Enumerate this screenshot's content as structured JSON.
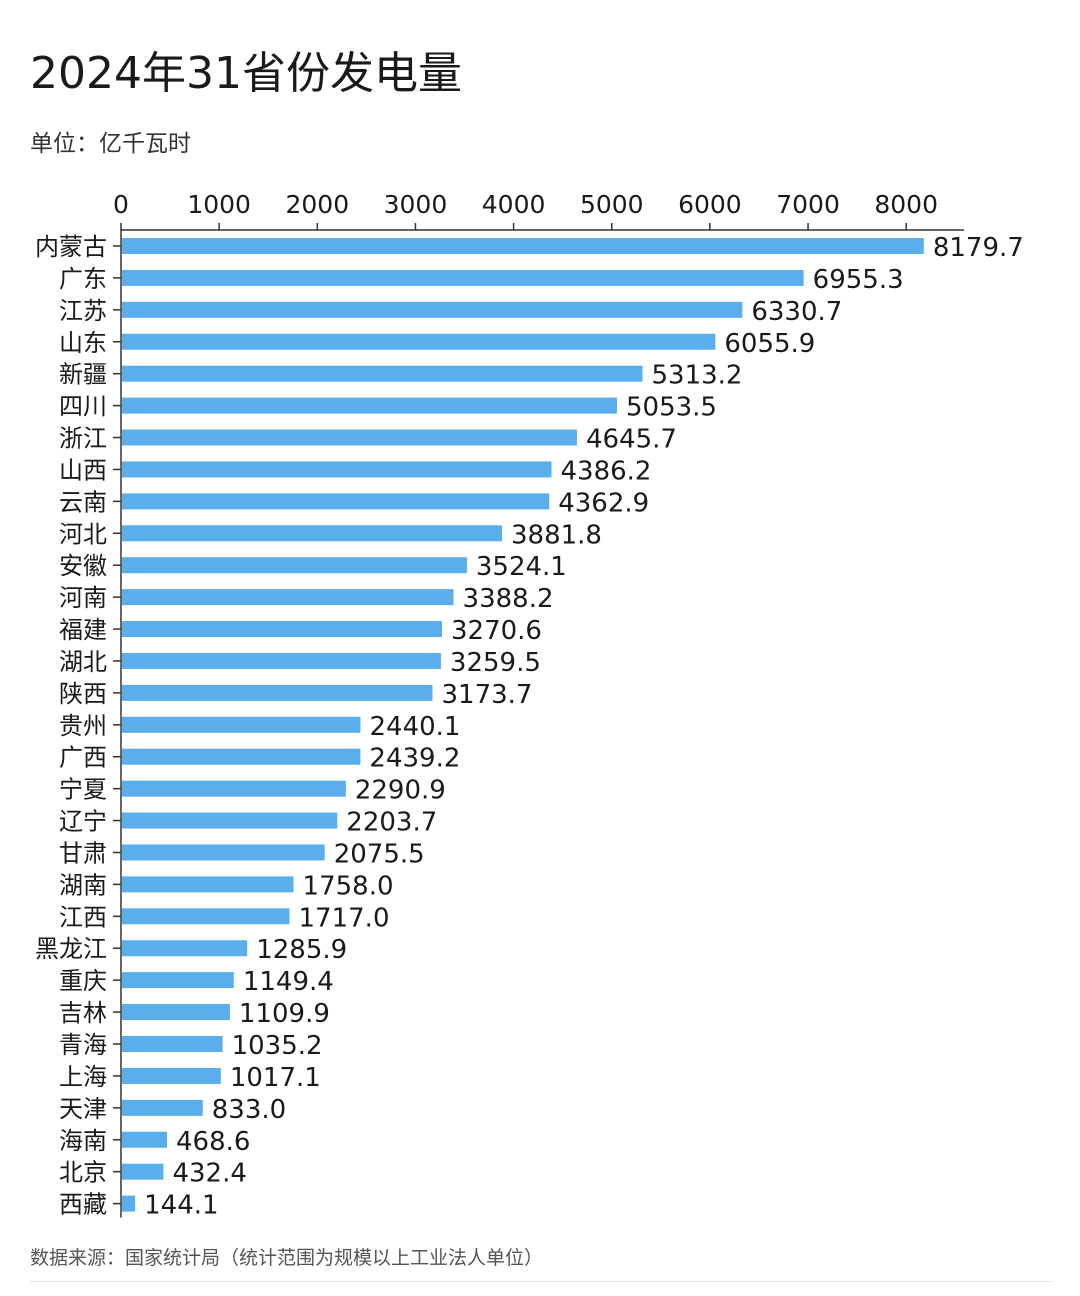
{
  "title": "2024年31省份发电量",
  "unit_label": "单位：亿千瓦时",
  "source": "数据来源：国家统计局（统计范围为规模以上工业法人单位）",
  "colors": {
    "bar": "#5aaeec",
    "axis": "#333333",
    "text": "#1a1a1a"
  },
  "chart_data": {
    "type": "bar",
    "orientation": "horizontal",
    "title": "2024年31省份发电量",
    "xlabel": "",
    "ylabel": "",
    "xlim": [
      0,
      8600
    ],
    "x_ticks": [
      "0",
      "1000",
      "2000",
      "3000",
      "4000",
      "5000",
      "6000",
      "7000",
      "8000"
    ],
    "x_axis_position": "top",
    "grid": false,
    "legend": "none",
    "categories": [
      "内蒙古",
      "广东",
      "江苏",
      "山东",
      "新疆",
      "四川",
      "浙江",
      "山西",
      "云南",
      "河北",
      "安徽",
      "河南",
      "福建",
      "湖北",
      "陕西",
      "贵州",
      "广西",
      "宁夏",
      "辽宁",
      "甘肃",
      "湖南",
      "江西",
      "黑龙江",
      "重庆",
      "吉林",
      "青海",
      "上海",
      "天津",
      "海南",
      "北京",
      "西藏"
    ],
    "values": [
      8179.7,
      6955.3,
      6330.7,
      6055.9,
      5313.2,
      5053.5,
      4645.7,
      4386.2,
      4362.9,
      3881.8,
      3524.1,
      3388.2,
      3270.6,
      3259.5,
      3173.7,
      2440.1,
      2439.2,
      2290.9,
      2203.7,
      2075.5,
      1758.0,
      1717.0,
      1285.9,
      1149.4,
      1109.9,
      1035.2,
      1017.1,
      833.0,
      468.6,
      432.4,
      144.1
    ],
    "value_labels": [
      "8179.7",
      "6955.3",
      "6330.7",
      "6055.9",
      "5313.2",
      "5053.5",
      "4645.7",
      "4386.2",
      "4362.9",
      "3881.8",
      "3524.1",
      "3388.2",
      "3270.6",
      "3259.5",
      "3173.7",
      "2440.1",
      "2439.2",
      "2290.9",
      "2203.7",
      "2075.5",
      "1758.0",
      "1717.0",
      "1285.9",
      "1149.4",
      "1109.9",
      "1035.2",
      "1017.1",
      "833.0",
      "468.6",
      "432.4",
      "144.1"
    ]
  }
}
